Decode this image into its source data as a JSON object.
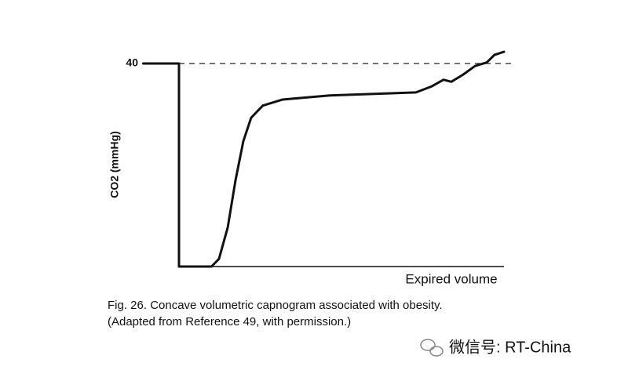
{
  "chart_data": {
    "type": "line",
    "y_label": "CO2 (mmHg)",
    "x_label": "Expired volume",
    "caption": [
      "Fig. 26. Concave volumetric capnogram associated with obesity.",
      "(Adapted from Reference 49, with permission.)"
    ],
    "watermark": "微信号: RT-China",
    "xlim": [
      0,
      100
    ],
    "ylim": [
      0,
      45
    ],
    "yticks": [
      40
    ],
    "grid": "dashed",
    "series": [
      {
        "color": "#111111",
        "x": [
          -11,
          0,
          0,
          10,
          12.3,
          15,
          17.4,
          19.8,
          22.2,
          25.8,
          31.9,
          46.4,
          72.9,
          77.8,
          81.4,
          83.8,
          87.4,
          91.1,
          94.7,
          97.1,
          100
        ],
        "values": [
          40,
          40,
          0,
          0,
          1.5,
          7.7,
          17,
          24.7,
          29.3,
          31.7,
          32.9,
          33.7,
          34.3,
          35.5,
          36.8,
          36.4,
          37.8,
          39.5,
          40.2,
          41.7,
          42.3
        ]
      }
    ]
  }
}
